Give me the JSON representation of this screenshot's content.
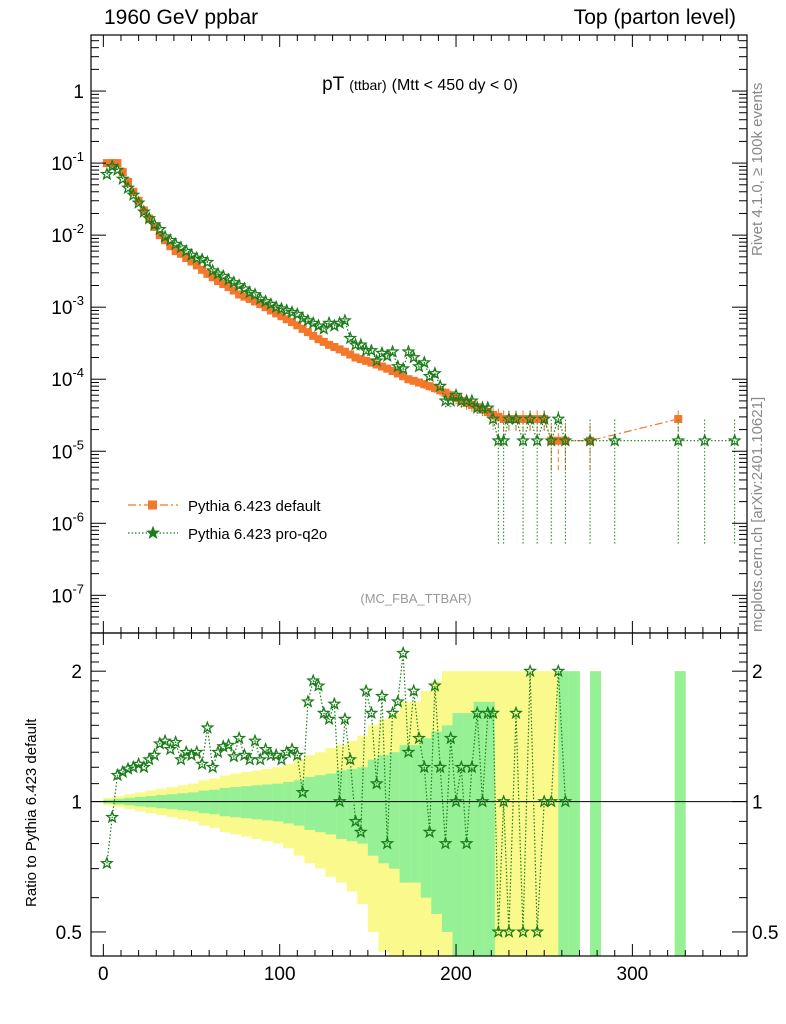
{
  "header": {
    "left": "1960 GeV ppbar",
    "right": "Top (parton level)"
  },
  "side_text": {
    "rivet": "Rivet 4.1.0, ≥ 100k events",
    "mcplots": "mcplots.cern.ch [arXiv:2401.10621]"
  },
  "colors": {
    "default": "#f4782c",
    "proq2o": "#1b7c1b",
    "band_yellow": "#fafa8c",
    "band_green": "#96f096",
    "watermark": "#999999"
  },
  "chart_data": [
    {
      "type": "line",
      "title_main": "pT",
      "title_sub": "(ttbar)",
      "title_rest": "(Mtt < 450 dy < 0)",
      "watermark": "(MC_FBA_TTBAR)",
      "yscale": "log",
      "xlim": [
        -7,
        365
      ],
      "ylim": [
        3e-08,
        6
      ],
      "yticks": [
        {
          "value": 1e-07,
          "base": "10",
          "exp": "-7"
        },
        {
          "value": 1e-06,
          "base": "10",
          "exp": "-6"
        },
        {
          "value": 1e-05,
          "base": "10",
          "exp": "-5"
        },
        {
          "value": 0.0001,
          "base": "10",
          "exp": "-4"
        },
        {
          "value": 0.001,
          "base": "10",
          "exp": "-3"
        },
        {
          "value": 0.01,
          "base": "10",
          "exp": "-2"
        },
        {
          "value": 0.1,
          "base": "10",
          "exp": "-1"
        },
        {
          "value": 1,
          "base": "1",
          "exp": ""
        }
      ],
      "legend": [
        {
          "label": "Pythia 6.423 default",
          "series": 0
        },
        {
          "label": "Pythia 6.423 pro-q2o",
          "series": 1
        }
      ],
      "series": [
        {
          "name": "Pythia 6.423 default",
          "style": "dashdot-square",
          "x": [
            2,
            5,
            8,
            11,
            14,
            17,
            20,
            23,
            26,
            29,
            32,
            35,
            38,
            41,
            44,
            47,
            50,
            53,
            56,
            59,
            62,
            65,
            68,
            71,
            74,
            77,
            80,
            83,
            86,
            89,
            92,
            95,
            98,
            101,
            104,
            107,
            110,
            113,
            116,
            119,
            122,
            125,
            128,
            131,
            134,
            137,
            140,
            143,
            146,
            149,
            152,
            155,
            158,
            161,
            164,
            167,
            170,
            173,
            176,
            179,
            182,
            185,
            188,
            191,
            194,
            197,
            200,
            203,
            206,
            209,
            212,
            215,
            218,
            221,
            224,
            227,
            230,
            234,
            238,
            242,
            246,
            250,
            254,
            258,
            262,
            276,
            326
          ],
          "y": [
            0.1,
            0.1,
            0.1,
            0.075,
            0.055,
            0.04,
            0.03,
            0.022,
            0.017,
            0.013,
            0.01,
            0.0085,
            0.007,
            0.006,
            0.0055,
            0.0048,
            0.0043,
            0.0038,
            0.0033,
            0.0029,
            0.0026,
            0.0023,
            0.0021,
            0.0019,
            0.0017,
            0.0015,
            0.0014,
            0.0013,
            0.0012,
            0.0011,
            0.001,
            0.0009,
            0.00082,
            0.00075,
            0.00068,
            0.00062,
            0.00056,
            0.0005,
            0.00045,
            0.0004,
            0.00036,
            0.00033,
            0.0003,
            0.00028,
            0.00026,
            0.00024,
            0.00022,
            0.0002,
            0.00019,
            0.00018,
            0.00017,
            0.00016,
            0.00015,
            0.00014,
            0.00013,
            0.00012,
            0.00011,
            0.0001,
            9.5e-05,
            9e-05,
            8.5e-05,
            8e-05,
            7.5e-05,
            7e-05,
            6.5e-05,
            6e-05,
            5.5e-05,
            5e-05,
            4.7e-05,
            4.4e-05,
            4.1e-05,
            3.8e-05,
            3.5e-05,
            3.2e-05,
            3e-05,
            2.8e-05,
            2.8e-05,
            2.8e-05,
            2.8e-05,
            2.8e-05,
            2.8e-05,
            2.8e-05,
            1.4e-05,
            1.4e-05,
            1.4e-05,
            1.4e-05,
            2.8e-05
          ],
          "err": [
            0.005,
            0.005,
            0.005,
            0.004,
            0.003,
            0.002,
            0.0015,
            0.001,
            0.0008,
            0.0006,
            0.0005,
            0.0004,
            0.00035,
            0.0003,
            0.00028,
            0.00025,
            0.00022,
            0.0002,
            0.00018,
            0.00016,
            0.00015,
            0.00013,
            0.00012,
            0.00011,
            0.0001,
            9e-05,
            8.5e-05,
            8e-05,
            7.5e-05,
            7e-05,
            6.5e-05,
            6e-05,
            5.5e-05,
            5e-05,
            4.7e-05,
            4.4e-05,
            4e-05,
            3.7e-05,
            3.4e-05,
            3.1e-05,
            2.9e-05,
            2.7e-05,
            2.5e-05,
            2.4e-05,
            2.3e-05,
            2.2e-05,
            2.1e-05,
            2e-05,
            1.9e-05,
            1.8e-05,
            1.7e-05,
            1.6e-05,
            1.6e-05,
            1.5e-05,
            1.4e-05,
            1.4e-05,
            1.3e-05,
            1.3e-05,
            1.2e-05,
            1.2e-05,
            1.2e-05,
            1.1e-05,
            1.1e-05,
            1.1e-05,
            1e-05,
            1e-05,
            1e-05,
            1e-05,
            1e-05,
            9e-06,
            9e-06,
            9e-06,
            9e-06,
            9e-06,
            9e-06,
            9e-06,
            9e-06,
            9e-06,
            9e-06,
            9e-06,
            9e-06,
            9e-06,
            9e-06,
            9e-06,
            9e-06,
            9e-06,
            9e-06
          ]
        },
        {
          "name": "Pythia 6.423 pro-q2o",
          "style": "dotted-star",
          "x": [
            2,
            5,
            8,
            11,
            14,
            17,
            20,
            23,
            26,
            29,
            32,
            35,
            38,
            41,
            44,
            47,
            50,
            53,
            56,
            59,
            62,
            65,
            68,
            71,
            74,
            77,
            80,
            83,
            86,
            89,
            92,
            95,
            98,
            101,
            104,
            107,
            110,
            113,
            116,
            119,
            122,
            125,
            128,
            131,
            134,
            137,
            140,
            143,
            146,
            149,
            152,
            155,
            158,
            161,
            164,
            167,
            170,
            173,
            176,
            179,
            182,
            185,
            188,
            191,
            194,
            197,
            200,
            203,
            206,
            209,
            212,
            215,
            218,
            221,
            224,
            227,
            230,
            234,
            238,
            242,
            246,
            250,
            254,
            258,
            262,
            276,
            290,
            326,
            341,
            358
          ],
          "y": [
            0.07,
            0.09,
            0.08,
            0.06,
            0.045,
            0.036,
            0.028,
            0.021,
            0.017,
            0.014,
            0.012,
            0.0095,
            0.0085,
            0.0075,
            0.0067,
            0.006,
            0.0053,
            0.0048,
            0.0046,
            0.0042,
            0.0032,
            0.0029,
            0.0027,
            0.0024,
            0.0022,
            0.002,
            0.0018,
            0.0016,
            0.0015,
            0.0013,
            0.0012,
            0.0011,
            0.001,
            0.00095,
            0.0009,
            0.00085,
            0.0008,
            0.0007,
            0.00065,
            0.0006,
            0.00055,
            0.0005,
            0.0006,
            0.00055,
            0.0006,
            0.00065,
            0.00037,
            0.0003,
            0.0003,
            0.00025,
            0.00025,
            0.00018,
            0.00023,
            0.00021,
            0.00024,
            0.00015,
            0.00014,
            0.00024,
            0.0002,
            0.00015,
            0.00017,
            0.00011,
            0.00012,
            8e-05,
            5e-05,
            5e-05,
            6e-05,
            5e-05,
            5e-05,
            5e-05,
            4e-05,
            4e-05,
            4e-05,
            2.8e-05,
            1.4e-05,
            1.4e-05,
            2.8e-05,
            2.8e-05,
            1.4e-05,
            2.8e-05,
            1.4e-05,
            2.8e-05,
            1.4e-05,
            2.8e-05,
            1.4e-05,
            1.4e-05,
            1.4e-05,
            1.4e-05,
            1.4e-05,
            1.4e-05
          ],
          "err": [
            0.004,
            0.005,
            0.004,
            0.003,
            0.0025,
            0.002,
            0.0015,
            0.0012,
            0.001,
            0.0008,
            0.0007,
            0.0006,
            0.0005,
            0.00045,
            0.0004,
            0.00035,
            0.0003,
            0.00028,
            0.00026,
            0.00024,
            0.0002,
            0.00018,
            0.00017,
            0.00015,
            0.00014,
            0.00013,
            0.00012,
            0.00011,
            0.0001,
            9e-05,
            8.5e-05,
            8e-05,
            7.5e-05,
            7e-05,
            6.5e-05,
            6e-05,
            5.5e-05,
            5e-05,
            4.8e-05,
            4.6e-05,
            4.4e-05,
            4e-05,
            4e-05,
            4e-05,
            4e-05,
            4e-05,
            3e-05,
            2.8e-05,
            2.8e-05,
            2.5e-05,
            2.5e-05,
            2e-05,
            2.3e-05,
            2.2e-05,
            2.3e-05,
            1.8e-05,
            1.7e-05,
            2.3e-05,
            2e-05,
            1.8e-05,
            1.9e-05,
            1.5e-05,
            1.6e-05,
            1.3e-05,
            1e-05,
            1e-05,
            1.1e-05,
            1e-05,
            1e-05,
            1e-05,
            9e-06,
            9e-06,
            9e-06,
            8e-06,
            1.35e-05,
            1.35e-05,
            8e-06,
            8e-06,
            1.35e-05,
            8e-06,
            1.35e-05,
            8e-06,
            1.35e-05,
            8e-06,
            1.35e-05,
            1.35e-05,
            1.35e-05,
            1.35e-05,
            1.35e-05,
            1.35e-05
          ]
        }
      ]
    },
    {
      "type": "line",
      "ylabel": "Ratio to Pythia 6.423 default",
      "yscale": "log",
      "xlim": [
        -7,
        365
      ],
      "ylim": [
        0.44,
        2.45
      ],
      "xticks": [
        0,
        100,
        200,
        300
      ],
      "yticks": [
        0.5,
        1,
        2
      ],
      "reference_line": 1,
      "bands": {
        "x": [
          0,
          6,
          12,
          18,
          24,
          30,
          36,
          42,
          48,
          54,
          60,
          66,
          72,
          78,
          84,
          90,
          96,
          102,
          108,
          114,
          120,
          126,
          132,
          138,
          144,
          150,
          156,
          162,
          168,
          174,
          180,
          186,
          192,
          198,
          204,
          210,
          216,
          222,
          228,
          234,
          240,
          246,
          252,
          258,
          264,
          270,
          276,
          282,
          288,
          294,
          300,
          306,
          312,
          318,
          324,
          330
        ],
        "yellow_rel": [
          0.02,
          0.03,
          0.04,
          0.05,
          0.06,
          0.07,
          0.08,
          0.09,
          0.1,
          0.12,
          0.13,
          0.15,
          0.16,
          0.17,
          0.18,
          0.19,
          0.2,
          0.22,
          0.25,
          0.28,
          0.3,
          0.33,
          0.35,
          0.38,
          0.42,
          0.5,
          0.55,
          0.6,
          0.7,
          0.7,
          0.8,
          0.9,
          1,
          1,
          1,
          1,
          1,
          1,
          1,
          1,
          1,
          1,
          1,
          1,
          1,
          0,
          1,
          0,
          0,
          0,
          0,
          0,
          0,
          0,
          1,
          0
        ],
        "green_rel": [
          0.01,
          0.015,
          0.02,
          0.025,
          0.03,
          0.035,
          0.04,
          0.045,
          0.05,
          0.06,
          0.065,
          0.075,
          0.08,
          0.085,
          0.09,
          0.095,
          0.1,
          0.11,
          0.12,
          0.14,
          0.15,
          0.16,
          0.18,
          0.19,
          0.2,
          0.25,
          0.28,
          0.3,
          0.35,
          0.35,
          0.4,
          0.45,
          0.5,
          0.6,
          0.6,
          0.7,
          0.7,
          0,
          0,
          0,
          0,
          0,
          0,
          1,
          1,
          0,
          1,
          0,
          0,
          0,
          0,
          0,
          0,
          0,
          1,
          0
        ]
      },
      "series": [
        {
          "name": "Pythia 6.423 pro-q2o ratio",
          "x": [
            2,
            5,
            8,
            11,
            14,
            17,
            20,
            23,
            26,
            29,
            32,
            35,
            38,
            41,
            44,
            47,
            50,
            53,
            56,
            59,
            62,
            65,
            68,
            71,
            74,
            77,
            80,
            83,
            86,
            89,
            92,
            95,
            98,
            101,
            104,
            107,
            110,
            113,
            116,
            119,
            122,
            125,
            128,
            131,
            134,
            137,
            140,
            143,
            146,
            149,
            152,
            155,
            158,
            161,
            164,
            167,
            170,
            173,
            176,
            179,
            182,
            185,
            188,
            191,
            194,
            197,
            200,
            203,
            206,
            209,
            212,
            215,
            218,
            221,
            224,
            227,
            230,
            234,
            238,
            242,
            246,
            250,
            254,
            258,
            262
          ],
          "y": [
            0.72,
            0.92,
            1.15,
            1.17,
            1.19,
            1.2,
            1.22,
            1.2,
            1.25,
            1.28,
            1.36,
            1.38,
            1.32,
            1.37,
            1.25,
            1.3,
            1.28,
            1.3,
            1.22,
            1.48,
            1.2,
            1.3,
            1.34,
            1.35,
            1.27,
            1.4,
            1.28,
            1.25,
            1.38,
            1.25,
            1.32,
            1.28,
            1.28,
            1.25,
            1.3,
            1.32,
            1.28,
            1.05,
            1.7,
            1.9,
            1.85,
            1.6,
            1.55,
            1.68,
            1.0,
            1.55,
            1.25,
            0.9,
            0.85,
            1.8,
            1.6,
            1.1,
            1.75,
            0.8,
            1.6,
            1.7,
            2.2,
            1.3,
            1.8,
            1.4,
            1.2,
            0.85,
            1.85,
            1.2,
            0.8,
            1.4,
            1.0,
            1.2,
            0.8,
            1.2,
            1.6,
            1.0,
            1.6,
            1.6,
            0.5,
            1.0,
            0.5,
            1.6,
            0.5,
            2.0,
            0.5,
            1.0,
            1.0,
            2.0,
            1.0
          ]
        }
      ]
    }
  ]
}
